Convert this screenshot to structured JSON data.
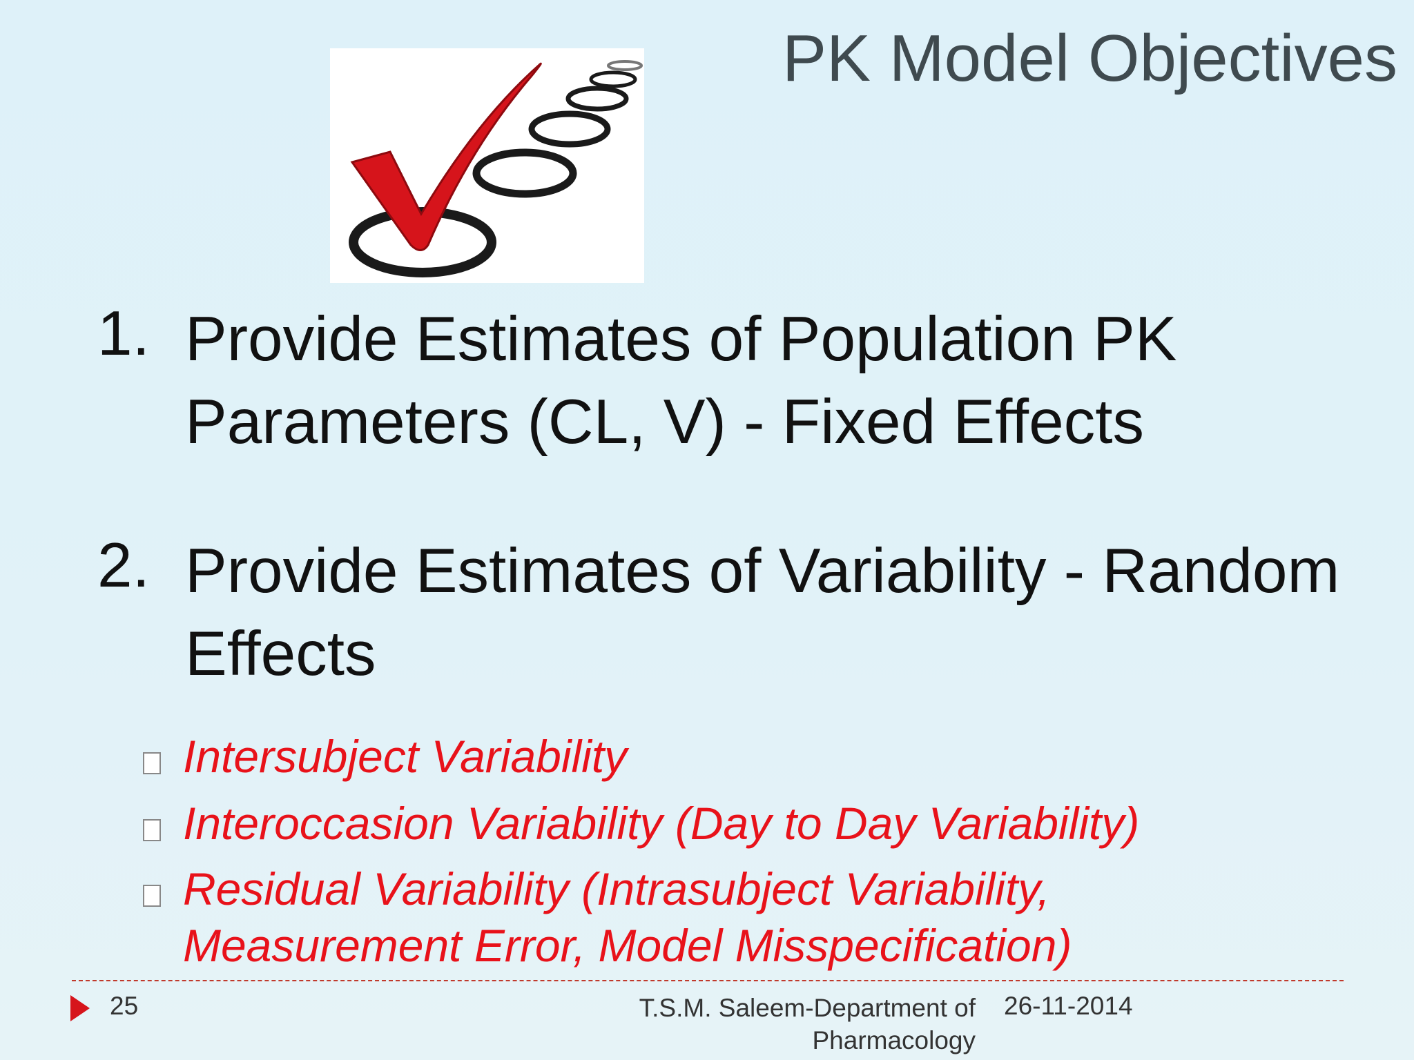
{
  "slide": {
    "title": "PK Model Objectives",
    "items": [
      {
        "number": "1.",
        "text": "Provide Estimates of Population PK Parameters (CL, V) - Fixed Effects"
      },
      {
        "number": "2.",
        "text": "Provide Estimates of Variability - Random Effects"
      }
    ],
    "sub_items": [
      "Intersubject Variability",
      "Interoccasion Variability (Day to Day Variability)",
      "Residual Variability (Intrasubject Variability, Measurement Error, Model Misspecification)"
    ],
    "footer": {
      "page": "25",
      "author": "T.S.M. Saleem-Department of Pharmacology",
      "date": "26-11-2014"
    }
  }
}
